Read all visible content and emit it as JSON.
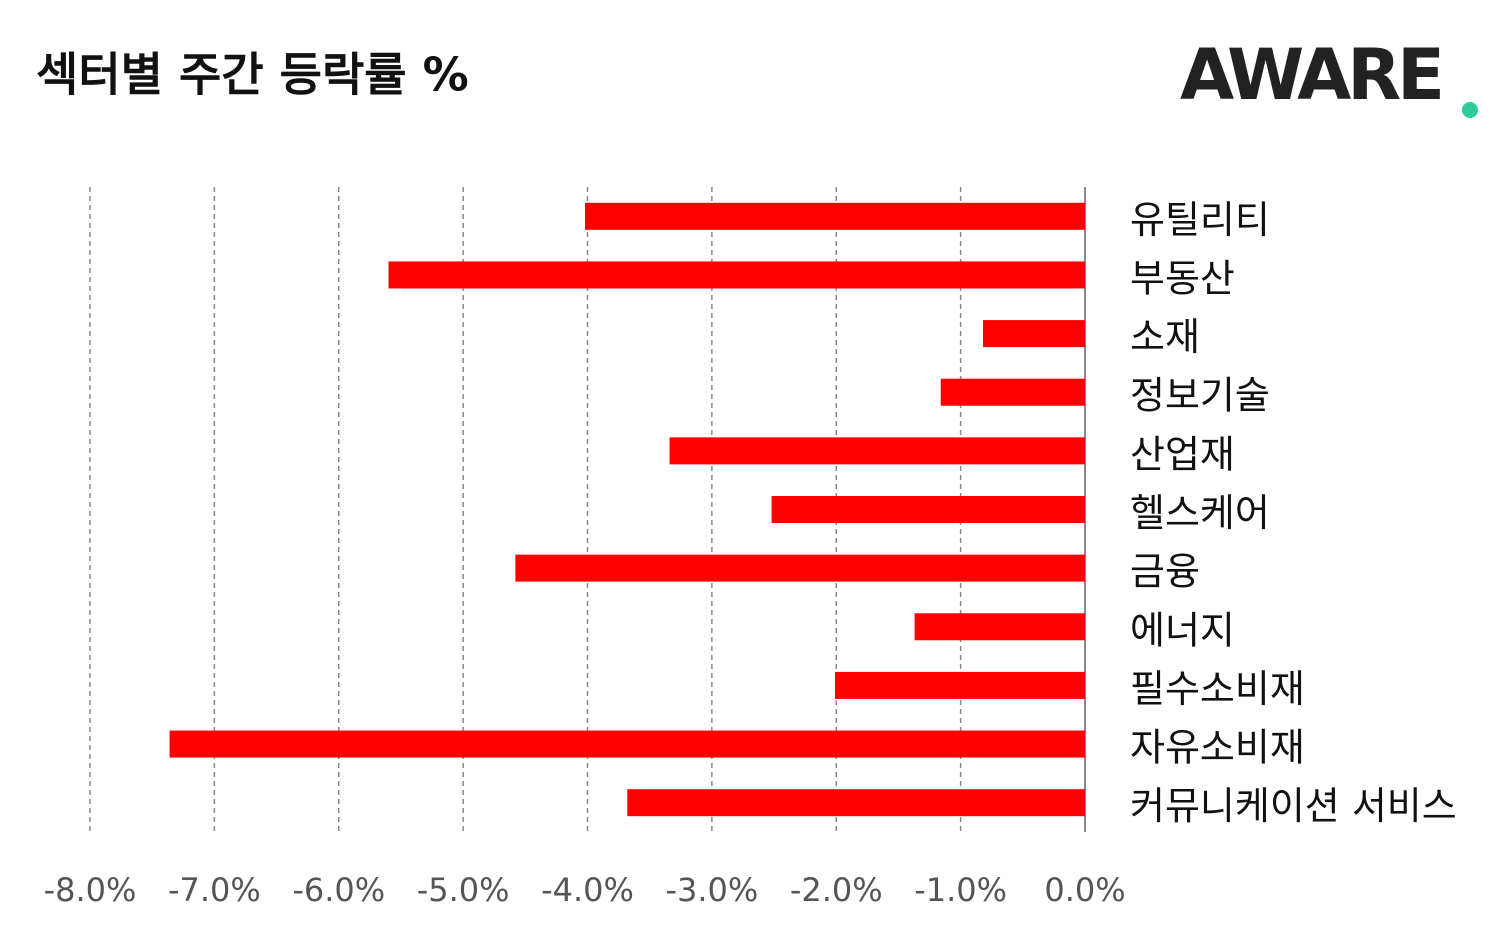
{
  "chart_data": {
    "type": "bar",
    "orientation": "horizontal",
    "title": "섹터별 주간 등락률 %",
    "logo": "AWARE",
    "categories": [
      "유틸리티",
      "부동산",
      "소재",
      "정보기술",
      "산업재",
      "헬스케어",
      "금융",
      "에너지",
      "필수소비재",
      "자유소비재",
      "커뮤니케이션 서비스"
    ],
    "values": [
      -4.02,
      -5.6,
      -0.82,
      -1.16,
      -3.34,
      -2.52,
      -4.58,
      -1.37,
      -2.01,
      -7.36,
      -3.68
    ],
    "color": "#ff0000",
    "xlim": [
      -8,
      0
    ],
    "xticks": [
      {
        "value": -8,
        "label": "-8.0%"
      },
      {
        "value": -7,
        "label": "-7.0%"
      },
      {
        "value": -6,
        "label": "-6.0%"
      },
      {
        "value": -5,
        "label": "-5.0%"
      },
      {
        "value": -4,
        "label": "-4.0%"
      },
      {
        "value": -3,
        "label": "-3.0%"
      },
      {
        "value": -2,
        "label": "-2.0%"
      },
      {
        "value": -1,
        "label": "-1.0%"
      },
      {
        "value": 0,
        "label": "0.0%"
      }
    ],
    "grid": true
  }
}
